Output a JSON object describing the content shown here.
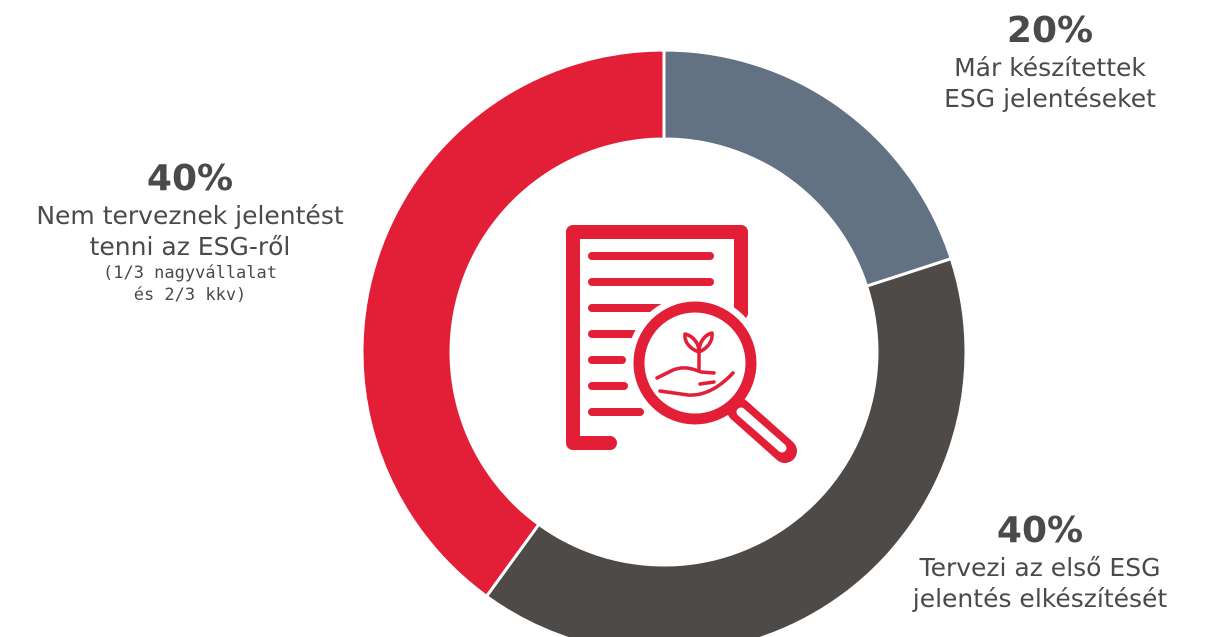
{
  "chart_data": {
    "type": "pie",
    "donut": true,
    "slices": [
      {
        "value": 20,
        "pct_label": "20%",
        "lines": [
          "Már készítettek",
          "ESG jelentéseket"
        ],
        "notes": [],
        "color": "#627282"
      },
      {
        "value": 40,
        "pct_label": "40%",
        "lines": [
          "Tervezi az első ESG",
          "jelentés elkészítését"
        ],
        "notes": [],
        "color": "#4d4a47"
      },
      {
        "value": 40,
        "pct_label": "40%",
        "lines": [
          "Nem terveznek jelentést",
          "tenni az ESG-ről"
        ],
        "notes": [
          "(1/3 nagyvállalat",
          "és 2/3 kkv)"
        ],
        "color": "#e31e37"
      }
    ],
    "center_icon": "document-magnifier-plant-icon",
    "icon_color": "#e31e37"
  }
}
